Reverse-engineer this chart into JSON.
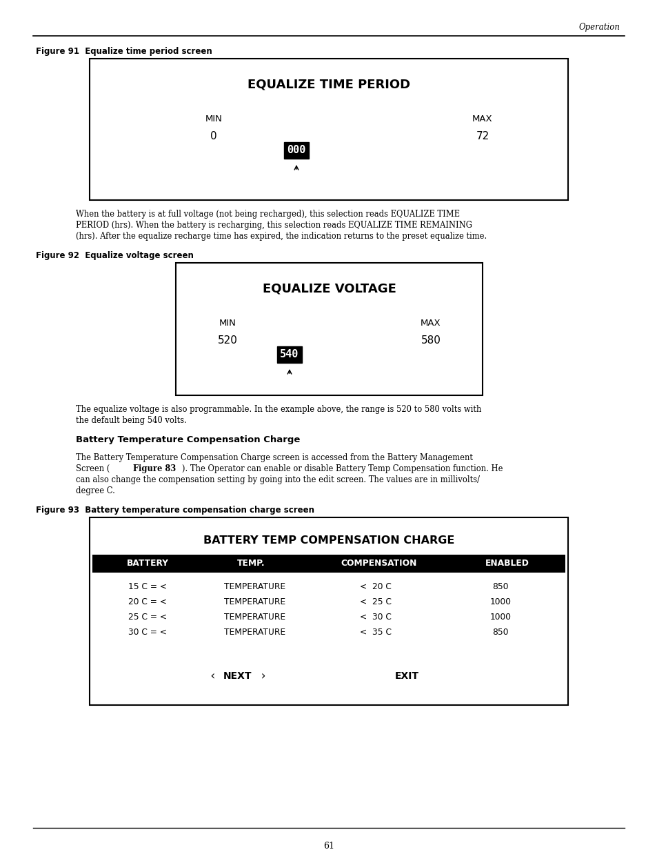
{
  "page_bg": "#ffffff",
  "header_text": "Operation",
  "footer_page_num": "61",
  "fig91_label": "Figure 91  Equalize time period screen",
  "fig91_title": "EQUALIZE TIME PERIOD",
  "fig91_min_label": "MIN",
  "fig91_max_label": "MAX",
  "fig91_min_val": "0",
  "fig91_max_val": "72",
  "fig91_current": "000",
  "fig91_text1": "When the battery is at full voltage (not being recharged), this selection reads EQUALIZE TIME",
  "fig91_text2": "PERIOD (hrs). When the battery is recharging, this selection reads EQUALIZE TIME REMAINING",
  "fig91_text3": "(hrs). After the equalize recharge time has expired, the indication returns to the preset equalize time.",
  "fig92_label": "Figure 92  Equalize voltage screen",
  "fig92_title": "EQUALIZE VOLTAGE",
  "fig92_min_label": "MIN",
  "fig92_max_label": "MAX",
  "fig92_min_val": "520",
  "fig92_max_val": "580",
  "fig92_current": "540",
  "fig92_text1": "The equalize voltage is also programmable. In the example above, the range is 520 to 580 volts with",
  "fig92_text2": "the default being 540 volts.",
  "btcc_heading": "Battery Temperature Compensation Charge",
  "btcc_text1": "The Battery Temperature Compensation Charge screen is accessed from the Battery Management",
  "btcc_text2": "Screen (⁠Figure 83⁠). The Operator can enable or disable Battery Temp Compensation function. He",
  "btcc_text3": "can also change the compensation setting by going into the edit screen. The values are in millivolts/",
  "btcc_text4": "degree C.",
  "fig93_label": "Figure 93  Battery temperature compensation charge screen",
  "fig93_title": "BATTERY TEMP COMPENSATION CHARGE",
  "fig93_headers": [
    "BATTERY",
    "TEMP.",
    "COMPENSATION",
    "ENABLED"
  ],
  "fig93_rows": [
    [
      "15 C = <",
      "TEMPERATURE",
      "<  20 C",
      "850"
    ],
    [
      "20 C = <",
      "TEMPERATURE",
      "<  25 C",
      "1000"
    ],
    [
      "25 C = <",
      "TEMPERATURE",
      "<  30 C",
      "1000"
    ],
    [
      "30 C = <",
      "TEMPERATURE",
      "<  35 C",
      "850"
    ]
  ],
  "fig93_next": "NEXT",
  "fig93_exit": "EXIT"
}
